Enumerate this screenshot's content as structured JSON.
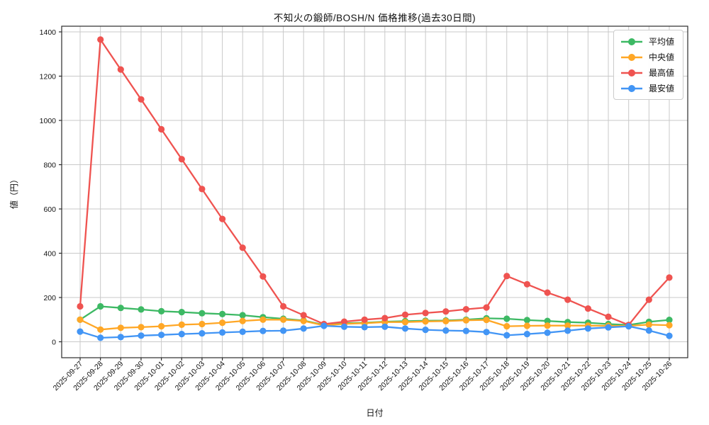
{
  "title": "不知火の鍛師/BOSH/N 価格推移(過去30日間)",
  "chart_data": {
    "type": "line",
    "title": "不知火の鍛師/BOSH/N 価格推移(過去30日間)",
    "xlabel": "日付",
    "ylabel": "値（円）",
    "grid": true,
    "legend_position": "upper right",
    "ylim": [
      -70,
      1430
    ],
    "yticks": [
      0,
      200,
      400,
      600,
      800,
      1000,
      1200,
      1400
    ],
    "categories": [
      "2025-09-27",
      "2025-09-28",
      "2025-09-29",
      "2025-09-30",
      "2025-10-01",
      "2025-10-02",
      "2025-10-03",
      "2025-10-04",
      "2025-10-05",
      "2025-10-06",
      "2025-10-07",
      "2025-10-08",
      "2025-10-09",
      "2025-10-10",
      "2025-10-11",
      "2025-10-12",
      "2025-10-13",
      "2025-10-14",
      "2025-10-15",
      "2025-10-16",
      "2025-10-17",
      "2025-10-18",
      "2025-10-19",
      "2025-10-20",
      "2025-10-21",
      "2025-10-22",
      "2025-10-23",
      "2025-10-24",
      "2025-10-25",
      "2025-10-26"
    ],
    "series": [
      {
        "key": "average",
        "name": "平均値",
        "color": "#3db964",
        "values": [
          100,
          160,
          153,
          146,
          138,
          134,
          129,
          125,
          120,
          111,
          104,
          96,
          76,
          84,
          86,
          91,
          93,
          95,
          96,
          100,
          106,
          104,
          98,
          94,
          89,
          86,
          80,
          76,
          90,
          99
        ]
      },
      {
        "key": "median",
        "name": "中央値",
        "color": "#ffa726",
        "values": [
          100,
          55,
          63,
          66,
          70,
          77,
          80,
          86,
          94,
          100,
          100,
          94,
          74,
          81,
          84,
          89,
          89,
          92,
          93,
          97,
          99,
          70,
          72,
          73,
          73,
          73,
          72,
          72,
          77,
          75
        ]
      },
      {
        "key": "max",
        "name": "最高値",
        "color": "#ef5350",
        "values": [
          160,
          1365,
          1230,
          1095,
          960,
          825,
          690,
          555,
          425,
          295,
          160,
          120,
          80,
          91,
          100,
          107,
          122,
          130,
          137,
          147,
          155,
          297,
          260,
          222,
          190,
          150,
          113,
          76,
          190,
          290
        ]
      },
      {
        "key": "min",
        "name": "最安値",
        "color": "#4295f5",
        "values": [
          46,
          18,
          21,
          28,
          31,
          35,
          38,
          42,
          45,
          49,
          50,
          60,
          72,
          68,
          66,
          68,
          60,
          54,
          51,
          49,
          44,
          29,
          35,
          41,
          50,
          60,
          65,
          70,
          51,
          27
        ]
      }
    ]
  }
}
